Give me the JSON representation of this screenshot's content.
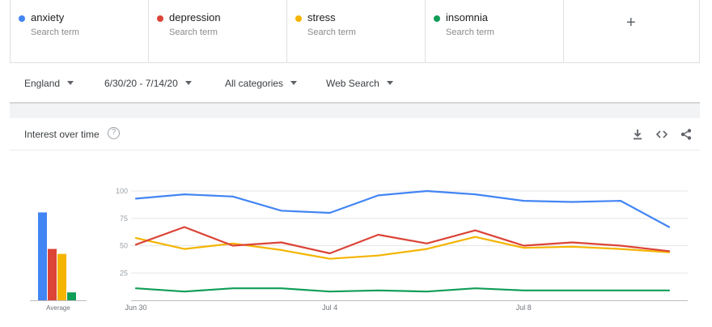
{
  "terms": [
    {
      "name": "anxiety",
      "sub": "Search term",
      "color": "#4285f4"
    },
    {
      "name": "depression",
      "sub": "Search term",
      "color": "#db4437"
    },
    {
      "name": "stress",
      "sub": "Search term",
      "color": "#f4b400"
    },
    {
      "name": "insomnia",
      "sub": "Search term",
      "color": "#0f9d58"
    }
  ],
  "add_term_icon": "+",
  "filters": {
    "region": "England",
    "date_range": "6/30/20 - 7/14/20",
    "category": "All categories",
    "search_type": "Web Search"
  },
  "card": {
    "title": "Interest over time",
    "help_icon": "?",
    "icons": [
      "download-icon",
      "embed-code-icon",
      "share-icon"
    ]
  },
  "chart_data": {
    "type": "line",
    "x": [
      "Jun 30",
      "Jul 1",
      "Jul 2",
      "Jul 3",
      "Jul 4",
      "Jul 5",
      "Jul 6",
      "Jul 7",
      "Jul 8",
      "Jul 9",
      "Jul 10",
      "Jul 11"
    ],
    "x_tick_labels": [
      "Jun 30",
      "Jul 4",
      "Jul 8"
    ],
    "ylim": [
      0,
      100
    ],
    "y_ticks": [
      100,
      75,
      50,
      25
    ],
    "grid": true,
    "series": [
      {
        "name": "anxiety",
        "color": "#4285f4",
        "values": [
          93,
          97,
          95,
          82,
          80,
          96,
          100,
          97,
          91,
          90,
          91,
          67
        ]
      },
      {
        "name": "depression",
        "color": "#db4437",
        "values": [
          51,
          67,
          50,
          53,
          43,
          60,
          52,
          64,
          50,
          53,
          50,
          45
        ]
      },
      {
        "name": "stress",
        "color": "#f4b400",
        "values": [
          57,
          47,
          52,
          46,
          38,
          41,
          47,
          58,
          48,
          49,
          47,
          44
        ]
      },
      {
        "name": "insomnia",
        "color": "#0f9d58",
        "values": [
          11,
          8,
          11,
          11,
          8,
          9,
          8,
          11,
          9,
          9,
          9,
          9
        ]
      }
    ],
    "averages": {
      "label": "Average",
      "values": [
        89,
        52,
        47,
        8
      ]
    }
  }
}
